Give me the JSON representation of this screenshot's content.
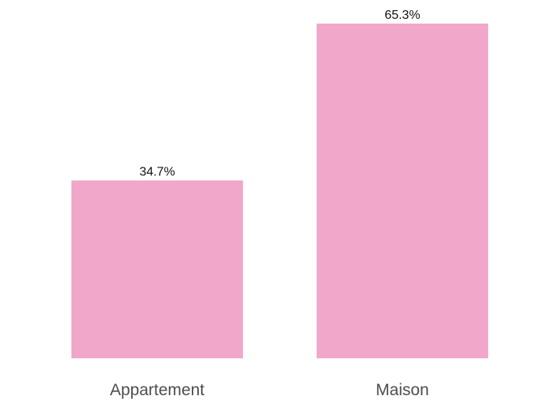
{
  "chart_data": {
    "type": "bar",
    "categories": [
      "Appartement",
      "Maison"
    ],
    "values": [
      34.7,
      65.3
    ],
    "value_labels": [
      "34.7%",
      "65.3%"
    ],
    "bar_color": "#f0a7ca",
    "ylim": [
      0,
      65.3
    ],
    "grid": false,
    "legend": "none"
  }
}
